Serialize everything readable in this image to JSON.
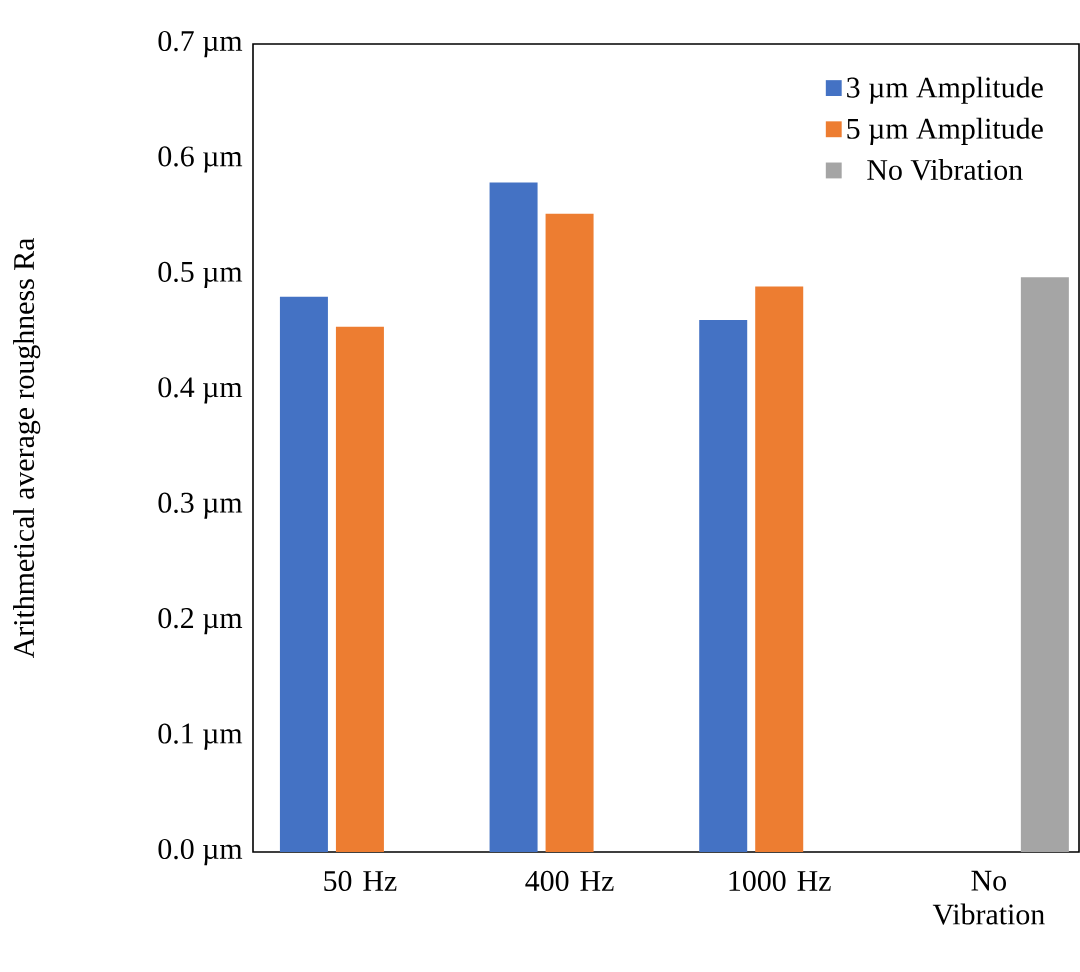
{
  "chart_data": {
    "type": "bar",
    "ylabel": "Arithmetical average roughness Ra",
    "categories": [
      "50 Hz",
      "400 Hz",
      "1000 Hz",
      "No Vibration"
    ],
    "series": [
      {
        "name": "3 µm Amplitude",
        "color": "#4472c4",
        "values": [
          0.481,
          0.58,
          0.461,
          null
        ]
      },
      {
        "name": "5 µm Amplitude",
        "color": "#ed7d31",
        "values": [
          0.455,
          0.553,
          0.49,
          null
        ]
      },
      {
        "name": "No Vibration",
        "color": "#a5a5a5",
        "values": [
          null,
          null,
          null,
          0.498
        ]
      }
    ],
    "ylim": [
      0,
      0.7
    ],
    "yticks": [
      {
        "value": 0,
        "label": "0.0 µm"
      },
      {
        "value": 0.1,
        "label": "0.1 µm"
      },
      {
        "value": 0.2,
        "label": "0.2 µm"
      },
      {
        "value": 0.3,
        "label": "0.3 µm"
      },
      {
        "value": 0.4,
        "label": "0.4 µm"
      },
      {
        "value": 0.5,
        "label": "0.5 µm"
      },
      {
        "value": 0.6,
        "label": "0.6 µm"
      },
      {
        "value": 0.7,
        "label": "0.7 µm"
      }
    ],
    "legend": "top right",
    "grid": false
  }
}
